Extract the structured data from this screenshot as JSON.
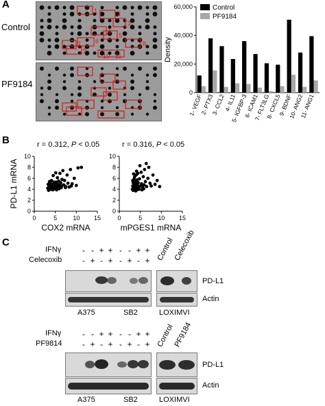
{
  "panels": {
    "a_letter": "A",
    "b_letter": "B",
    "c_letter": "C"
  },
  "panel_a": {
    "array_labels": [
      "Control",
      "PF9184"
    ],
    "spot_numbers": [
      "1",
      "2",
      "3",
      "4",
      "5",
      "6",
      "7",
      "8",
      "9",
      "10",
      "11"
    ]
  },
  "chart_data": [
    {
      "type": "bar",
      "title": "",
      "ylabel": "Density",
      "xlabel": "",
      "ylim": [
        0,
        60000
      ],
      "yticks": [
        "0",
        "20,000",
        "40,000",
        "60,000"
      ],
      "legend_position": "top-left",
      "categories": [
        "1- VEGF",
        "2- PTX3",
        "3- CCL2",
        "4- IL11",
        "5- IGFBP-3",
        "6- ICAM1",
        "7- FLT3LG",
        "8- CXCL5",
        "9- BDNF",
        "10- ANG2",
        "11- ANG1"
      ],
      "series": [
        {
          "name": "Control",
          "color": "#000000",
          "values": [
            12000,
            38000,
            32500,
            23500,
            36000,
            27000,
            20500,
            19500,
            51000,
            28000,
            39500
          ]
        },
        {
          "name": "PF9184",
          "color": "#a8a8a8",
          "values": [
            4500,
            15500,
            4000,
            6500,
            6000,
            3500,
            1000,
            4500,
            12500,
            4000,
            8500
          ]
        }
      ]
    },
    {
      "type": "scatter",
      "title": "",
      "annotation_prefix": "r = 0.312, ",
      "annotation_p": "P",
      "annotation_suffix": " < 0.05",
      "xlabel": "COX2 mRNA",
      "ylabel": "PD-L1 mRNA",
      "xlim": [
        0,
        15
      ],
      "ylim": [
        0,
        10
      ],
      "xticks": [
        "0",
        "5",
        "10",
        "15"
      ],
      "yticks": [
        "0",
        "2",
        "4",
        "6",
        "8",
        "10"
      ],
      "points": [
        [
          3.2,
          4.2
        ],
        [
          3.5,
          4.6
        ],
        [
          3.8,
          5.1
        ],
        [
          4.0,
          4.3
        ],
        [
          4.1,
          5.6
        ],
        [
          4.3,
          4.9
        ],
        [
          4.5,
          6.5
        ],
        [
          4.6,
          4.4
        ],
        [
          4.8,
          5.0
        ],
        [
          5.0,
          4.6
        ],
        [
          5.1,
          7.0
        ],
        [
          5.2,
          5.3
        ],
        [
          5.4,
          4.5
        ],
        [
          5.5,
          6.1
        ],
        [
          5.6,
          4.9
        ],
        [
          5.8,
          5.5
        ],
        [
          6.0,
          4.7
        ],
        [
          6.1,
          6.9
        ],
        [
          6.3,
          5.2
        ],
        [
          6.4,
          4.3
        ],
        [
          6.6,
          5.8
        ],
        [
          6.8,
          7.4
        ],
        [
          7.0,
          4.8
        ],
        [
          7.2,
          5.6
        ],
        [
          7.5,
          4.5
        ],
        [
          7.8,
          6.6
        ],
        [
          8.0,
          5.1
        ],
        [
          8.3,
          4.4
        ],
        [
          8.6,
          7.6
        ],
        [
          9.0,
          5.0
        ],
        [
          9.5,
          6.0
        ],
        [
          10.0,
          4.7
        ],
        [
          10.4,
          7.9
        ],
        [
          11.2,
          8.0
        ],
        [
          3.4,
          3.8
        ],
        [
          3.9,
          4.0
        ],
        [
          4.4,
          3.9
        ],
        [
          4.9,
          4.1
        ],
        [
          5.3,
          3.9
        ],
        [
          5.9,
          4.1
        ],
        [
          3.6,
          5.4
        ],
        [
          3.3,
          4.9
        ],
        [
          4.2,
          4.7
        ],
        [
          4.7,
          5.3
        ],
        [
          5.7,
          4.2
        ],
        [
          6.5,
          4.6
        ],
        [
          7.4,
          4.3
        ],
        [
          8.8,
          4.6
        ]
      ]
    },
    {
      "type": "scatter",
      "title": "",
      "annotation_prefix": "r = 0.316, ",
      "annotation_p": "P",
      "annotation_suffix": " < 0.05",
      "xlabel": "mPGES1 mRNA",
      "ylabel": "",
      "xlim": [
        0,
        15
      ],
      "ylim": [
        0,
        10
      ],
      "xticks": [
        "0",
        "5",
        "10",
        "15"
      ],
      "yticks": [
        "0",
        "2",
        "4",
        "6",
        "8",
        "10"
      ],
      "points": [
        [
          3.1,
          4.0
        ],
        [
          3.2,
          4.6
        ],
        [
          3.3,
          5.2
        ],
        [
          3.4,
          4.3
        ],
        [
          3.5,
          5.8
        ],
        [
          3.5,
          4.8
        ],
        [
          3.6,
          6.2
        ],
        [
          3.7,
          4.5
        ],
        [
          3.8,
          5.4
        ],
        [
          3.9,
          4.1
        ],
        [
          4.0,
          6.6
        ],
        [
          4.0,
          5.0
        ],
        [
          4.1,
          4.4
        ],
        [
          4.2,
          5.7
        ],
        [
          4.3,
          4.7
        ],
        [
          4.4,
          6.9
        ],
        [
          4.5,
          5.2
        ],
        [
          4.6,
          4.3
        ],
        [
          4.8,
          5.9
        ],
        [
          5.0,
          4.6
        ],
        [
          5.2,
          7.1
        ],
        [
          5.3,
          5.0
        ],
        [
          5.5,
          4.4
        ],
        [
          5.7,
          6.3
        ],
        [
          5.9,
          4.8
        ],
        [
          6.0,
          7.6
        ],
        [
          6.2,
          5.4
        ],
        [
          6.5,
          4.5
        ],
        [
          6.8,
          6.0
        ],
        [
          7.0,
          8.0
        ],
        [
          7.3,
          5.1
        ],
        [
          7.6,
          4.6
        ],
        [
          8.0,
          6.6
        ],
        [
          8.5,
          4.9
        ],
        [
          9.0,
          5.6
        ],
        [
          9.6,
          4.5
        ],
        [
          3.3,
          3.8
        ],
        [
          3.6,
          3.9
        ],
        [
          3.9,
          3.7
        ],
        [
          4.2,
          3.9
        ],
        [
          4.7,
          4.0
        ],
        [
          5.4,
          3.9
        ],
        [
          3.2,
          5.6
        ],
        [
          3.4,
          6.8
        ],
        [
          4.1,
          7.3
        ],
        [
          4.9,
          8.3
        ],
        [
          6.4,
          8.7
        ],
        [
          5.8,
          4.1
        ]
      ]
    }
  ],
  "panel_c": {
    "top": {
      "row1_label": "IFNγ",
      "row1_signs": [
        "-",
        "-",
        "+",
        "+",
        "-",
        "-",
        "+",
        "+"
      ],
      "row2_label": "Celecoxib",
      "row2_signs": [
        "-",
        "+",
        "-",
        "+",
        "-",
        "+",
        "-",
        "+"
      ],
      "col_labels": [
        "Control",
        "Celecoxib"
      ],
      "band_labels": [
        "PD-L1",
        "Actin"
      ],
      "cell_lines": [
        "A375",
        "SB2",
        "LOXIMVI"
      ]
    },
    "bottom": {
      "row1_label": "IFNγ",
      "row1_signs": [
        "-",
        "-",
        "+",
        "+",
        "-",
        "-",
        "+",
        "+"
      ],
      "row2_label": "PF9814",
      "row2_signs": [
        "-",
        "+",
        "-",
        "+",
        "-",
        "+",
        "-",
        "+"
      ],
      "col_labels": [
        "Control",
        "PF9184"
      ],
      "band_labels": [
        "PD-L1",
        "Actin"
      ],
      "cell_lines": [
        "A375",
        "SB2",
        "LOXIMVI"
      ]
    }
  }
}
